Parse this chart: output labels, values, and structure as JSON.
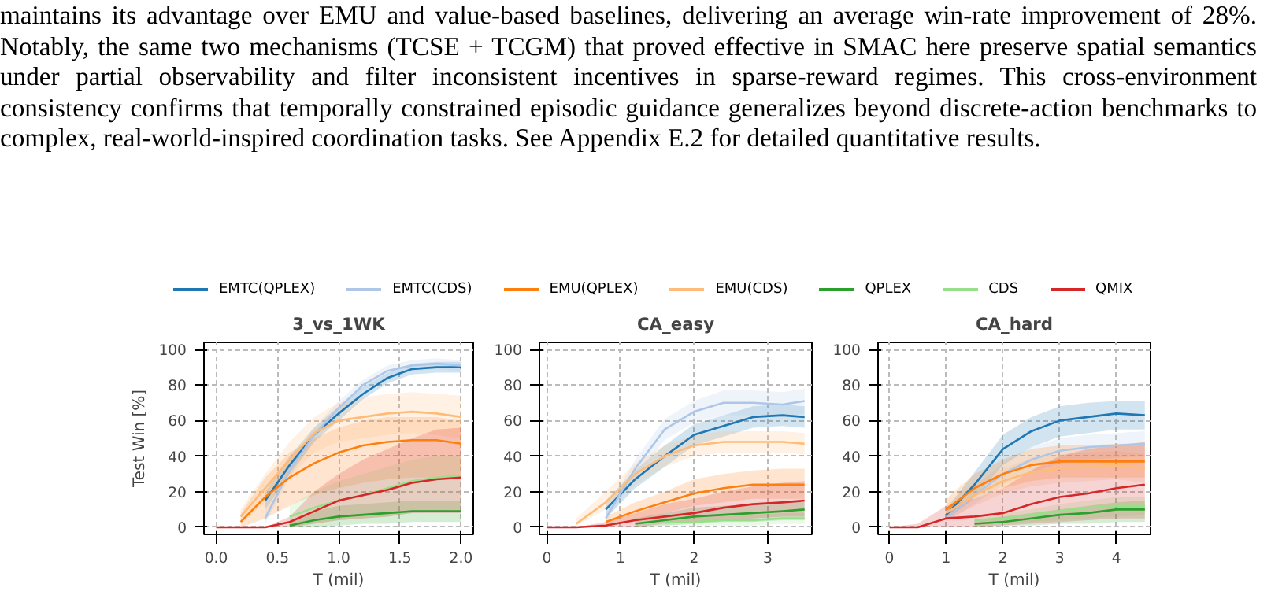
{
  "chart_data": [
    {
      "type": "line",
      "title": "3_vs_1WK",
      "xlabel": "T (mil)",
      "ylabel": "Test Win [%]",
      "legend": "top",
      "grid": true,
      "annotations": [
        "maintains its advantage over EMU and value-based baselines, delivering an average win-rate improvement of 28%. Notably, the same two mechanisms (TCSE + TCGM) that proved effective in SMAC here preserve spatial semantics under partial observability and filter inconsistent incentives in sparse-reward regimes. This cross-environment consistency confirms that temporally constrained episodic guidance generalizes beyond discrete-action benchmarks to complex, real-world-inspired coordination tasks. See Appendix E.2 for detailed quantitative results."
      ],
      "xlim": [
        -0.1,
        2.1
      ],
      "ylim": [
        -4,
        104
      ],
      "xticks": [
        {
          "value": 0,
          "label": "0.0"
        },
        {
          "value": 0.5,
          "label": "0.5"
        },
        {
          "value": 1,
          "label": "1.0"
        },
        {
          "value": 1.5,
          "label": "1.5"
        },
        {
          "value": 2,
          "label": "2.0"
        }
      ],
      "yticks": [
        0,
        20,
        40,
        60,
        80,
        100
      ],
      "series": [
        {
          "name": "EMTC(QPLEX)",
          "color": "#1f77b4",
          "x": [
            0.4,
            0.6,
            0.8,
            1.0,
            1.2,
            1.4,
            1.6,
            1.8,
            2.0
          ],
          "values": [
            15,
            35,
            52,
            64,
            75,
            84,
            89,
            90,
            90
          ],
          "lower": [
            10,
            30,
            48,
            60,
            72,
            81,
            86,
            87,
            87
          ],
          "upper": [
            20,
            40,
            56,
            68,
            79,
            87,
            92,
            93,
            93
          ]
        },
        {
          "name": "EMTC(CDS)",
          "color": "#aec7e8",
          "x": [
            0.4,
            0.6,
            0.8,
            1.0,
            1.2,
            1.4,
            1.6,
            1.8,
            2.0
          ],
          "values": [
            5,
            32,
            52,
            67,
            80,
            88,
            91,
            92,
            91
          ],
          "lower": [
            2,
            28,
            48,
            63,
            77,
            85,
            88,
            89,
            88
          ],
          "upper": [
            9,
            36,
            56,
            71,
            83,
            91,
            94,
            95,
            94
          ]
        },
        {
          "name": "EMU(QPLEX)",
          "color": "#ff7f0e",
          "x": [
            0.2,
            0.4,
            0.6,
            0.8,
            1.0,
            1.2,
            1.4,
            1.6,
            1.8,
            2.0
          ],
          "values": [
            3,
            17,
            28,
            36,
            42,
            46,
            48,
            49,
            49,
            47
          ],
          "lower": [
            0,
            5,
            12,
            18,
            22,
            25,
            27,
            28,
            28,
            27
          ],
          "upper": [
            8,
            28,
            42,
            50,
            56,
            60,
            62,
            62,
            62,
            60
          ]
        },
        {
          "name": "EMU(CDS)",
          "color": "#ffbb78",
          "x": [
            0.2,
            0.4,
            0.6,
            0.8,
            1.0,
            1.2,
            1.4,
            1.6,
            1.8,
            2.0
          ],
          "values": [
            6,
            22,
            38,
            53,
            60,
            62,
            64,
            65,
            64,
            62
          ],
          "lower": [
            2,
            14,
            28,
            42,
            48,
            50,
            52,
            53,
            52,
            50
          ],
          "upper": [
            10,
            30,
            48,
            62,
            70,
            73,
            75,
            76,
            75,
            74
          ]
        },
        {
          "name": "QPLEX",
          "color": "#2ca02c",
          "x": [
            0.6,
            0.8,
            1.0,
            1.2,
            1.4,
            1.6,
            1.8,
            2.0
          ],
          "values": [
            1,
            4,
            6,
            7,
            8,
            9,
            9,
            9
          ],
          "lower": [
            0,
            0,
            1,
            2,
            2,
            3,
            3,
            3
          ],
          "upper": [
            3,
            9,
            12,
            13,
            14,
            15,
            15,
            15
          ]
        },
        {
          "name": "CDS",
          "color": "#98df8a",
          "x": [
            0.6,
            0.8,
            1.0,
            1.2,
            1.4,
            1.6,
            1.8,
            2.0
          ],
          "values": [
            6,
            11,
            15,
            18,
            22,
            26,
            28,
            29
          ],
          "lower": [
            0,
            2,
            4,
            5,
            6,
            8,
            9,
            10
          ],
          "upper": [
            12,
            20,
            26,
            30,
            34,
            38,
            40,
            40
          ]
        },
        {
          "name": "QMIX",
          "color": "#d62728",
          "x": [
            0,
            0.2,
            0.4,
            0.6,
            0.8,
            1.0,
            1.2,
            1.4,
            1.6,
            1.8,
            2.0
          ],
          "values": [
            0,
            0,
            0,
            3,
            9,
            15,
            18,
            21,
            25,
            27,
            28
          ],
          "lower": [
            0,
            0,
            0,
            0,
            2,
            4,
            5,
            6,
            8,
            8,
            8
          ],
          "upper": [
            0,
            0,
            0,
            6,
            20,
            30,
            38,
            44,
            50,
            55,
            56
          ]
        }
      ]
    },
    {
      "type": "line",
      "title": "CA_easy",
      "xlabel": "T (mil)",
      "grid": true,
      "xlim": [
        -0.1,
        3.6
      ],
      "ylim": [
        -4,
        104
      ],
      "xticks": [
        0,
        1,
        2,
        3
      ],
      "yticks": [
        0,
        20,
        40,
        60,
        80,
        100
      ],
      "series": [
        {
          "color": "#1f77b4",
          "x": [
            0.8,
            1.2,
            1.6,
            2.0,
            2.4,
            2.8,
            3.2,
            3.5
          ],
          "values": [
            10,
            27,
            40,
            52,
            57,
            62,
            63,
            62
          ],
          "lower": [
            5,
            22,
            34,
            46,
            51,
            56,
            57,
            56
          ],
          "upper": [
            15,
            32,
            46,
            58,
            63,
            68,
            69,
            68
          ]
        },
        {
          "color": "#aec7e8",
          "x": [
            0.8,
            1.2,
            1.6,
            2.0,
            2.4,
            2.8,
            3.2,
            3.5
          ],
          "values": [
            5,
            33,
            55,
            65,
            70,
            70,
            69,
            71
          ],
          "lower": [
            3,
            28,
            49,
            59,
            63,
            63,
            62,
            64
          ],
          "upper": [
            8,
            38,
            61,
            71,
            77,
            77,
            76,
            78
          ]
        },
        {
          "color": "#ff7f0e",
          "x": [
            0.8,
            1.2,
            1.6,
            2.0,
            2.4,
            2.8,
            3.2,
            3.5
          ],
          "values": [
            3,
            9,
            14,
            19,
            22,
            24,
            24,
            24
          ],
          "lower": [
            1,
            4,
            8,
            12,
            14,
            16,
            16,
            16
          ],
          "upper": [
            6,
            14,
            20,
            27,
            30,
            32,
            33,
            33
          ]
        },
        {
          "color": "#ffbb78",
          "x": [
            0.4,
            0.8,
            1.2,
            1.6,
            2.0,
            2.4,
            2.8,
            3.2,
            3.5
          ],
          "values": [
            2,
            14,
            30,
            40,
            46,
            48,
            48,
            48,
            47
          ],
          "lower": [
            1,
            10,
            24,
            34,
            40,
            42,
            42,
            42,
            41
          ],
          "upper": [
            5,
            20,
            36,
            46,
            52,
            54,
            54,
            54,
            53
          ]
        },
        {
          "color": "#2ca02c",
          "x": [
            1.2,
            1.6,
            2.0,
            2.4,
            2.8,
            3.2,
            3.5
          ],
          "values": [
            2,
            4,
            6,
            7,
            8,
            9,
            10
          ],
          "lower": [
            0,
            1,
            2,
            3,
            3,
            4,
            4
          ],
          "upper": [
            5,
            8,
            11,
            12,
            13,
            14,
            15
          ]
        },
        {
          "color": "#98df8a",
          "x": [
            1.6,
            2.0,
            2.4,
            2.8,
            3.2,
            3.5
          ],
          "values": [
            3,
            3,
            4,
            4,
            5,
            5
          ],
          "lower": [
            1,
            1,
            1,
            1,
            2,
            2
          ],
          "upper": [
            6,
            6,
            7,
            7,
            8,
            8
          ]
        },
        {
          "color": "#d62728",
          "x": [
            0,
            0.4,
            0.8,
            1.2,
            1.6,
            2.0,
            2.4,
            2.8,
            3.2,
            3.5
          ],
          "values": [
            0,
            0,
            1,
            4,
            6,
            8,
            11,
            13,
            14,
            15
          ],
          "lower": [
            0,
            0,
            0,
            0,
            2,
            3,
            4,
            5,
            6,
            6
          ],
          "upper": [
            0,
            0,
            3,
            8,
            13,
            16,
            20,
            23,
            25,
            26
          ]
        }
      ]
    },
    {
      "type": "line",
      "title": "CA_hard",
      "xlabel": "T (mil)",
      "grid": true,
      "xlim": [
        -0.2,
        4.6
      ],
      "ylim": [
        -4,
        104
      ],
      "xticks": [
        0,
        1,
        2,
        3,
        4
      ],
      "yticks": [
        0,
        20,
        40,
        60,
        80,
        100
      ],
      "series": [
        {
          "color": "#1f77b4",
          "x": [
            1,
            1.5,
            2,
            2.5,
            3,
            3.5,
            4,
            4.5
          ],
          "values": [
            7,
            24,
            44,
            54,
            60,
            62,
            64,
            63
          ],
          "lower": [
            4,
            17,
            35,
            45,
            51,
            53,
            55,
            55
          ],
          "upper": [
            10,
            31,
            52,
            62,
            68,
            70,
            71,
            71
          ]
        },
        {
          "color": "#aec7e8",
          "x": [
            1,
            1.5,
            2,
            2.5,
            3,
            3.5,
            4,
            4.5
          ],
          "values": [
            5,
            18,
            30,
            38,
            43,
            45,
            46,
            47
          ],
          "lower": [
            3,
            13,
            24,
            31,
            36,
            38,
            39,
            40
          ],
          "upper": [
            8,
            23,
            36,
            45,
            50,
            52,
            53,
            54
          ]
        },
        {
          "color": "#ff7f0e",
          "x": [
            1,
            1.5,
            2,
            2.5,
            3,
            3.5,
            4,
            4.5
          ],
          "values": [
            10,
            22,
            30,
            35,
            37,
            37,
            37,
            37
          ],
          "lower": [
            5,
            16,
            22,
            26,
            28,
            28,
            28,
            28
          ],
          "upper": [
            16,
            30,
            38,
            44,
            46,
            46,
            47,
            47
          ]
        },
        {
          "color": "#ffbb78",
          "x": [
            1,
            1.5,
            2,
            2.5,
            3,
            3.5,
            4,
            4.5
          ],
          "values": [
            8,
            18,
            26,
            31,
            33,
            34,
            35,
            33
          ],
          "lower": [
            4,
            12,
            19,
            23,
            25,
            26,
            27,
            25
          ],
          "upper": [
            13,
            25,
            33,
            39,
            41,
            42,
            43,
            41
          ]
        },
        {
          "color": "#2ca02c",
          "x": [
            1.5,
            2,
            2.5,
            3,
            3.5,
            4,
            4.5
          ],
          "values": [
            2,
            3,
            5,
            7,
            8,
            10,
            10
          ],
          "lower": [
            0,
            1,
            1,
            2,
            2,
            3,
            3
          ],
          "upper": [
            4,
            6,
            8,
            10,
            12,
            14,
            15
          ]
        },
        {
          "color": "#98df8a",
          "x": [
            1.5,
            2,
            2.5,
            3,
            3.5,
            4,
            4.5
          ],
          "values": [
            4,
            5,
            7,
            9,
            11,
            12,
            12
          ],
          "lower": [
            1,
            2,
            3,
            4,
            5,
            6,
            7
          ],
          "upper": [
            6,
            8,
            10,
            13,
            15,
            17,
            17
          ]
        },
        {
          "color": "#d62728",
          "x": [
            0,
            0.5,
            1,
            1.5,
            2,
            2.5,
            3,
            3.5,
            4,
            4.5
          ],
          "values": [
            0,
            0,
            5,
            6,
            8,
            13,
            17,
            19,
            22,
            24
          ],
          "lower": [
            0,
            0,
            0,
            0,
            1,
            2,
            3,
            4,
            5,
            5
          ],
          "upper": [
            0,
            2,
            12,
            16,
            22,
            32,
            40,
            44,
            46,
            48
          ]
        }
      ]
    }
  ]
}
